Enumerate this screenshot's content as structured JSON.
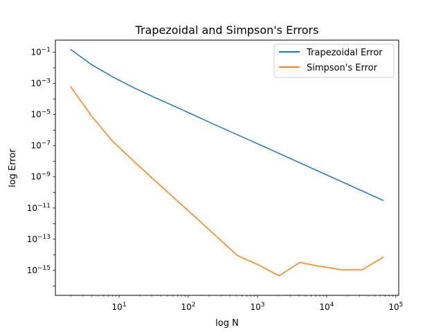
{
  "chart_data": {
    "type": "line",
    "title": "Trapezoidal and Simpson's Errors",
    "xlabel": "log N",
    "ylabel": "log Error",
    "xscale": "log",
    "yscale": "log",
    "xlim": [
      1.2,
      110000
    ],
    "ylim": [
      2.5e-17,
      0.6
    ],
    "grid": false,
    "legend_position": "top-right",
    "x_ticks": [
      {
        "base": "10",
        "exp": "1",
        "value": 10
      },
      {
        "base": "10",
        "exp": "2",
        "value": 100
      },
      {
        "base": "10",
        "exp": "3",
        "value": 1000
      },
      {
        "base": "10",
        "exp": "4",
        "value": 10000
      },
      {
        "base": "10",
        "exp": "5",
        "value": 100000
      }
    ],
    "y_ticks": [
      {
        "base": "10",
        "exp": "−1",
        "value": 0.1
      },
      {
        "base": "10",
        "exp": "−3",
        "value": 0.001
      },
      {
        "base": "10",
        "exp": "−5",
        "value": 1e-05
      },
      {
        "base": "10",
        "exp": "−7",
        "value": 1e-07
      },
      {
        "base": "10",
        "exp": "−9",
        "value": 1e-09
      },
      {
        "base": "10",
        "exp": "−11",
        "value": 1e-11
      },
      {
        "base": "10",
        "exp": "−13",
        "value": 1e-13
      },
      {
        "base": "10",
        "exp": "−15",
        "value": 1e-15
      }
    ],
    "x": [
      2,
      4,
      8,
      16,
      32,
      64,
      128,
      256,
      512,
      1024,
      2048,
      4096,
      8192,
      16384,
      32768,
      65536
    ],
    "series": [
      {
        "name": "Trapezoidal Error",
        "color": "#1f77b4",
        "values": [
          0.15,
          0.016,
          0.0027,
          0.00055,
          0.00013,
          3.3e-05,
          8.2e-06,
          2e-06,
          5.1e-07,
          1.3e-07,
          3.2e-08,
          8e-09,
          2e-09,
          5e-10,
          1.25e-10,
          3.1e-11
        ]
      },
      {
        "name": "Simpson's Error",
        "color": "#ff7f0e",
        "values": [
          0.0006,
          8e-06,
          2e-07,
          1.1e-08,
          6.5e-10,
          4e-11,
          2.5e-12,
          1.5e-13,
          9e-15,
          2.3e-15,
          4.5e-16,
          3.2e-15,
          1.8e-15,
          1.1e-15,
          1.1e-15,
          7e-15
        ]
      }
    ]
  }
}
